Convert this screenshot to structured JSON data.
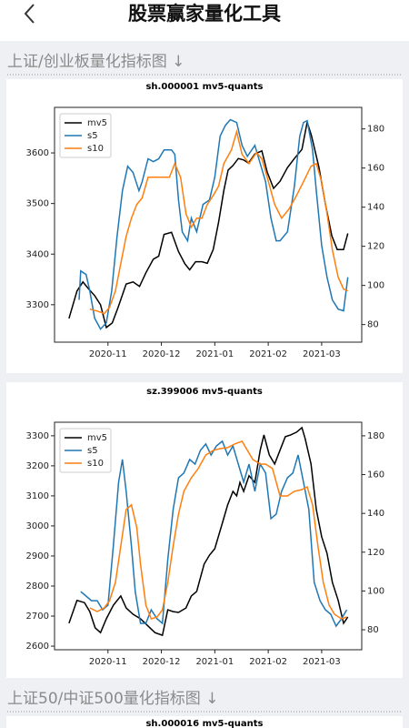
{
  "header": {
    "title": "股票赢家量化工具"
  },
  "sections": [
    {
      "heading": "上证/创业板量化指标图 ↓"
    },
    {
      "heading": "上证50/中证500量化指标图 ↓"
    }
  ],
  "chart_data": [
    {
      "type": "line",
      "title": "sh.000001 mv5-quants",
      "legend": "upper left",
      "xlim": [
        10,
        15.75
      ],
      "xticks": [
        {
          "value": 11,
          "label": "2020-11"
        },
        {
          "value": 12,
          "label": "2020-12"
        },
        {
          "value": 13,
          "label": "2021-01"
        },
        {
          "value": 14,
          "label": "2021-02"
        },
        {
          "value": 15,
          "label": "2021-03"
        }
      ],
      "ylim": [
        3226,
        3690
      ],
      "yticks": [
        3300,
        3400,
        3500,
        3600
      ],
      "y2lim": [
        71,
        191
      ],
      "y2ticks": [
        80,
        100,
        120,
        140,
        160,
        180
      ],
      "series": [
        {
          "name": "mv5",
          "color": "#000000",
          "x": [
            10.27,
            10.42,
            10.53,
            10.64,
            10.75,
            10.86,
            10.97,
            11.08,
            11.19,
            11.34,
            11.47,
            11.59,
            11.71,
            11.85,
            11.95,
            12.05,
            12.19,
            12.32,
            12.44,
            12.53,
            12.64,
            12.76,
            12.86,
            12.97,
            13.07,
            13.17,
            13.25,
            13.34,
            13.44,
            13.54,
            13.63,
            13.75,
            13.88,
            13.98,
            14.1,
            14.22,
            14.36,
            14.49,
            14.63,
            14.73,
            14.81,
            14.95,
            15.07,
            15.19,
            15.29,
            15.41,
            15.49
          ],
          "values": [
            3273,
            3327,
            3345,
            3331,
            3318,
            3300,
            3255,
            3264,
            3295,
            3341,
            3345,
            3336,
            3363,
            3390,
            3396,
            3439,
            3443,
            3405,
            3381,
            3369,
            3385,
            3385,
            3382,
            3409,
            3463,
            3526,
            3566,
            3575,
            3589,
            3586,
            3580,
            3598,
            3604,
            3562,
            3530,
            3544,
            3571,
            3589,
            3607,
            3661,
            3634,
            3571,
            3499,
            3436,
            3409,
            3409,
            3441
          ]
        },
        {
          "name": "s5",
          "color": "#1f77b4",
          "axis": "y2",
          "x": [
            10.46,
            10.49,
            10.59,
            10.66,
            10.75,
            10.86,
            10.97,
            11.07,
            11.17,
            11.27,
            11.37,
            11.47,
            11.58,
            11.64,
            11.75,
            11.85,
            11.95,
            12.05,
            12.19,
            12.25,
            12.32,
            12.39,
            12.49,
            12.56,
            12.66,
            12.78,
            12.9,
            13.0,
            13.1,
            13.2,
            13.29,
            13.41,
            13.51,
            13.61,
            13.75,
            13.85,
            13.95,
            14.05,
            14.15,
            14.22,
            14.36,
            14.49,
            14.59,
            14.66,
            14.73,
            14.83,
            14.9,
            15.0,
            15.1,
            15.2,
            15.31,
            15.41,
            15.49
          ],
          "values": [
            92.6,
            107.4,
            105.6,
            97.2,
            83.3,
            77.7,
            80.9,
            97.2,
            125.1,
            148.4,
            160.9,
            157.7,
            148.4,
            153.0,
            164.7,
            163.3,
            164.7,
            169.3,
            169.3,
            167.0,
            143.7,
            127.4,
            122.8,
            134.4,
            127.4,
            141.4,
            143.7,
            155.3,
            176.3,
            181.9,
            184.7,
            183.3,
            171.6,
            166.0,
            171.6,
            162.3,
            153.0,
            134.4,
            122.8,
            122.8,
            127.4,
            150.7,
            176.3,
            183.3,
            184.2,
            169.3,
            148.4,
            120.5,
            104.2,
            92.6,
            87.9,
            87.0,
            104.2
          ]
        },
        {
          "name": "s10",
          "color": "#ff7f0e",
          "axis": "y2",
          "x": [
            10.66,
            10.8,
            10.93,
            11.03,
            11.14,
            11.24,
            11.34,
            11.44,
            11.54,
            11.64,
            11.75,
            11.88,
            12.02,
            12.15,
            12.25,
            12.36,
            12.46,
            12.56,
            12.66,
            12.76,
            12.86,
            12.97,
            13.07,
            13.17,
            13.31,
            13.41,
            13.51,
            13.64,
            13.78,
            13.88,
            13.98,
            14.12,
            14.25,
            14.39,
            14.53,
            14.66,
            14.8,
            14.9,
            15.0,
            15.1,
            15.2,
            15.31,
            15.41,
            15.49
          ],
          "values": [
            87.9,
            86.9,
            85.6,
            88.8,
            97.2,
            111.2,
            125.1,
            134.4,
            141.4,
            144.7,
            155.3,
            155.3,
            155.3,
            155.3,
            162.3,
            155.3,
            136.7,
            129.8,
            134.4,
            134.4,
            141.4,
            146.0,
            150.7,
            162.3,
            169.3,
            178.6,
            167.0,
            162.3,
            167.9,
            164.7,
            155.3,
            141.4,
            134.4,
            139.1,
            146.0,
            153.0,
            160.9,
            162.3,
            153.0,
            136.7,
            118.1,
            104.2,
            98.1,
            97.2
          ]
        }
      ]
    },
    {
      "type": "line",
      "title": "sz.399006 mv5-quants",
      "legend": "upper left",
      "xlim": [
        10,
        15.75
      ],
      "xticks": [
        {
          "value": 11,
          "label": "2020-11"
        },
        {
          "value": 12,
          "label": "2020-12"
        },
        {
          "value": 13,
          "label": "2021-01"
        },
        {
          "value": 14,
          "label": "2021-02"
        },
        {
          "value": 15,
          "label": "2021-03"
        }
      ],
      "ylim": [
        2588,
        3345
      ],
      "yticks": [
        2600,
        2700,
        2800,
        2900,
        3000,
        3100,
        3200,
        3300
      ],
      "y2lim": [
        69.7,
        187
      ],
      "y2ticks": [
        80,
        100,
        120,
        140,
        160,
        180
      ],
      "series": [
        {
          "name": "mv5",
          "color": "#000000",
          "x": [
            10.27,
            10.42,
            10.56,
            10.66,
            10.76,
            10.86,
            10.97,
            11.1,
            11.24,
            11.34,
            11.47,
            11.61,
            11.75,
            11.88,
            12.02,
            12.12,
            12.22,
            12.32,
            12.46,
            12.56,
            12.66,
            12.8,
            12.9,
            13.0,
            13.14,
            13.24,
            13.34,
            13.41,
            13.47,
            13.54,
            13.64,
            13.75,
            13.85,
            13.92,
            14.02,
            14.12,
            14.22,
            14.32,
            14.42,
            14.53,
            14.63,
            14.69,
            14.8,
            14.9,
            15.0,
            15.1,
            15.2,
            15.31,
            15.41,
            15.49
          ],
          "values": [
            2676,
            2752,
            2745,
            2715,
            2661,
            2645,
            2691,
            2736,
            2767,
            2727,
            2706,
            2691,
            2667,
            2645,
            2636,
            2721,
            2715,
            2712,
            2727,
            2767,
            2782,
            2873,
            2903,
            2924,
            3009,
            3070,
            3115,
            3100,
            3145,
            3115,
            3167,
            3145,
            3252,
            3303,
            3236,
            3206,
            3252,
            3297,
            3303,
            3312,
            3327,
            3291,
            3206,
            3055,
            2964,
            2909,
            2812,
            2752,
            2676,
            2697
          ]
        },
        {
          "name": "s5",
          "color": "#1f77b4",
          "axis": "y2",
          "x": [
            10.49,
            10.59,
            10.69,
            10.8,
            10.9,
            11.0,
            11.1,
            11.2,
            11.27,
            11.34,
            11.44,
            11.51,
            11.61,
            11.71,
            11.81,
            11.92,
            12.02,
            12.12,
            12.22,
            12.32,
            12.42,
            12.53,
            12.63,
            12.73,
            12.83,
            12.93,
            13.03,
            13.14,
            13.24,
            13.34,
            13.44,
            13.54,
            13.64,
            13.75,
            13.85,
            13.95,
            14.05,
            14.15,
            14.25,
            14.36,
            14.46,
            14.56,
            14.66,
            14.76,
            14.86,
            14.97,
            15.07,
            15.17,
            15.27,
            15.37,
            15.47
          ],
          "values": [
            99.7,
            97.4,
            95.0,
            95.0,
            90.3,
            92.7,
            123.2,
            156.1,
            167.8,
            151.4,
            123.2,
            99.7,
            83.3,
            83.3,
            90.3,
            85.6,
            83.3,
            116.2,
            142.0,
            158.4,
            160.8,
            167.8,
            165.4,
            172.5,
            175.8,
            170.1,
            174.8,
            177.2,
            170.1,
            174.8,
            165.4,
            156.1,
            165.4,
            151.4,
            165.4,
            160.8,
            137.3,
            139.6,
            151.4,
            158.4,
            160.8,
            170.1,
            156.1,
            142.0,
            104.4,
            95.0,
            90.3,
            88.0,
            81.9,
            85.6,
            90.3
          ]
        },
        {
          "name": "s10",
          "color": "#ff7f0e",
          "axis": "y2",
          "x": [
            10.66,
            10.8,
            10.93,
            11.03,
            11.14,
            11.24,
            11.34,
            11.44,
            11.54,
            11.61,
            11.71,
            11.81,
            11.92,
            12.02,
            12.12,
            12.22,
            12.32,
            12.42,
            12.56,
            12.69,
            12.83,
            12.97,
            13.1,
            13.24,
            13.37,
            13.51,
            13.61,
            13.71,
            13.85,
            13.95,
            14.08,
            14.22,
            14.36,
            14.49,
            14.63,
            14.73,
            14.83,
            14.93,
            15.03,
            15.14,
            15.24,
            15.37,
            15.47
          ],
          "values": [
            91.3,
            89.4,
            91.3,
            95.0,
            104.4,
            123.2,
            142.0,
            144.4,
            132.6,
            113.8,
            92.7,
            85.6,
            86.6,
            90.3,
            104.4,
            123.2,
            139.6,
            151.4,
            158.4,
            163.1,
            170.1,
            172.5,
            173.4,
            173.9,
            175.8,
            177.2,
            172.5,
            167.8,
            165.4,
            165.4,
            163.1,
            149.0,
            149.0,
            151.4,
            152.3,
            153.7,
            144.4,
            123.2,
            104.4,
            92.7,
            88.0,
            85.6,
            86.6
          ]
        }
      ]
    },
    {
      "type": "line",
      "title": "sh.000016 mv5-quants"
    }
  ]
}
